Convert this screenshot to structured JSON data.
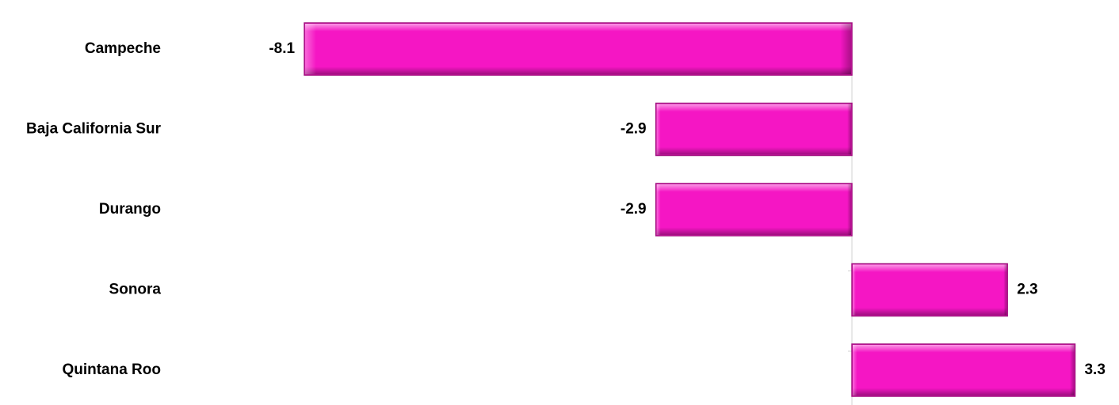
{
  "chart_data": {
    "type": "bar",
    "orientation": "horizontal",
    "categories": [
      "Campeche",
      "Baja California Sur",
      "Durango",
      "Sonora",
      "Quintana Roo"
    ],
    "values": [
      -8.1,
      -2.9,
      -2.9,
      2.3,
      3.3
    ],
    "value_labels": [
      "-8.1",
      "-2.9",
      "-2.9",
      "2.3",
      "3.3"
    ],
    "title": "",
    "xlabel": "",
    "ylabel": "",
    "xlim": [
      -8.1,
      3.3
    ],
    "grid": false,
    "legend": "none",
    "colors": {
      "bar_fill": "#f516c4",
      "bar_light": "#ff8ae4",
      "bar_dark": "#a0107f",
      "axis": "#d0d0d0"
    }
  }
}
